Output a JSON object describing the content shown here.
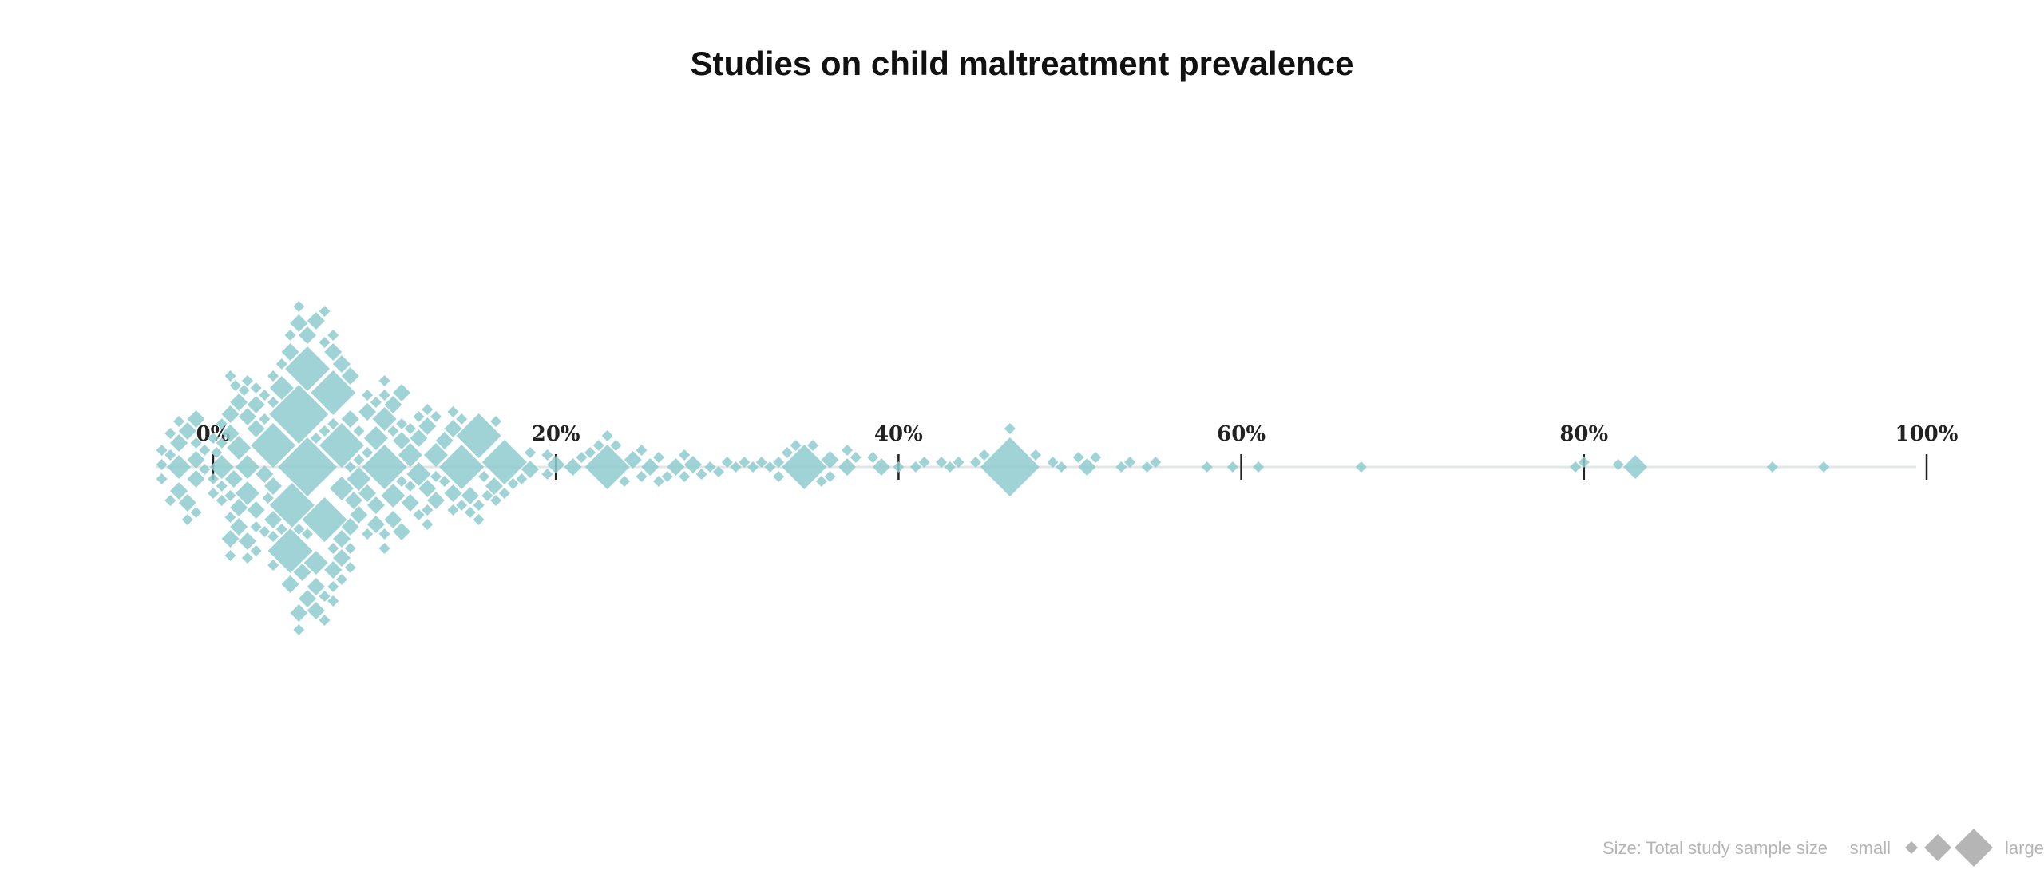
{
  "chart_data": {
    "type": "scatter",
    "subtype": "beeswarm",
    "title": "Studies on child maltreatment prevalence",
    "xlabel": "",
    "ylabel": "",
    "x_unit": "%",
    "xlim": [
      0,
      100
    ],
    "ticks": [
      "0%",
      "20%",
      "40%",
      "60%",
      "80%",
      "100%"
    ],
    "tick_values": [
      0,
      20,
      40,
      60,
      80,
      100
    ],
    "grid": false,
    "marker": "diamond",
    "colors": {
      "points": "#8ecbcf",
      "axis": "#e3e6e6",
      "tick": "#222222",
      "legend": "#b5b5b5"
    },
    "size_legend": {
      "label": "Size: Total study sample size",
      "small_label": "small",
      "large_label": "large",
      "placement": "bottom-right"
    },
    "points": [
      {
        "x": 3.2,
        "size": 1
      },
      {
        "x": 1.0,
        "size": 1
      },
      {
        "x": 1.0,
        "size": 1
      },
      {
        "x": 4.6,
        "size": 4
      },
      {
        "x": 6.5,
        "size": 4
      },
      {
        "x": 9.5,
        "size": 3
      },
      {
        "x": 1.5,
        "size": 2
      },
      {
        "x": 8.5,
        "size": 3
      },
      {
        "x": 3.0,
        "size": 2
      },
      {
        "x": 6.0,
        "size": 2
      },
      {
        "x": 0.5,
        "size": 1
      },
      {
        "x": 11.0,
        "size": 2
      },
      {
        "x": 2.0,
        "size": 3
      },
      {
        "x": 1.8,
        "size": 1
      },
      {
        "x": 0.2,
        "size": 1
      },
      {
        "x": 1.3,
        "size": 1
      },
      {
        "x": 5.5,
        "size": 2
      },
      {
        "x": 7.5,
        "size": 3
      },
      {
        "x": 8.2,
        "size": 2
      },
      {
        "x": 11.5,
        "size": 3
      },
      {
        "x": 13.0,
        "size": 1
      },
      {
        "x": 15.8,
        "size": 1
      },
      {
        "x": 16.4,
        "size": 2
      },
      {
        "x": 3.5,
        "size": 1
      },
      {
        "x": 14.5,
        "size": 1
      },
      {
        "x": 5.2,
        "size": 2
      },
      {
        "x": 1.2,
        "size": 2
      },
      {
        "x": 2.5,
        "size": 1
      },
      {
        "x": 10.5,
        "size": 3
      },
      {
        "x": -1.0,
        "size": 1
      },
      {
        "x": -2.0,
        "size": 2
      },
      {
        "x": 1.0,
        "size": 2
      },
      {
        "x": 2.0,
        "size": 1
      },
      {
        "x": 2.5,
        "size": 2
      },
      {
        "x": 4.0,
        "size": 3
      },
      {
        "x": 6.5,
        "size": 1
      },
      {
        "x": 8.0,
        "size": 2
      },
      {
        "x": 10.0,
        "size": 3
      },
      {
        "x": 12.0,
        "size": 2
      },
      {
        "x": 14.0,
        "size": 2
      },
      {
        "x": -2.5,
        "size": 1
      },
      {
        "x": -1.0,
        "size": 2
      },
      {
        "x": 1.0,
        "size": 1
      },
      {
        "x": 3.5,
        "size": 2
      },
      {
        "x": 7.0,
        "size": 1
      },
      {
        "x": 9.0,
        "size": 2
      },
      {
        "x": 11.5,
        "size": 1
      },
      {
        "x": 13.0,
        "size": 3
      },
      {
        "x": -2.0,
        "size": 2
      },
      {
        "x": 0.5,
        "size": 3
      },
      {
        "x": 2.0,
        "size": 2
      },
      {
        "x": 4.5,
        "size": 2
      },
      {
        "x": 6.0,
        "size": 3
      },
      {
        "x": 8.0,
        "size": 2
      },
      {
        "x": 9.5,
        "size": 1
      },
      {
        "x": 12.0,
        "size": 3
      },
      {
        "x": 14.5,
        "size": 4
      },
      {
        "x": -3.0,
        "size": 1
      },
      {
        "x": -1.5,
        "size": 1
      },
      {
        "x": 1.5,
        "size": 2
      },
      {
        "x": 3.0,
        "size": 1
      },
      {
        "x": 5.5,
        "size": 2
      },
      {
        "x": 7.5,
        "size": 2
      },
      {
        "x": 10.0,
        "size": 1
      },
      {
        "x": 12.5,
        "size": 2
      },
      {
        "x": 16.5,
        "size": 1
      },
      {
        "x": 18.0,
        "size": 1
      },
      {
        "x": 19.5,
        "size": 1
      },
      {
        "x": 21.0,
        "size": 2
      },
      {
        "x": 22.5,
        "size": 1
      },
      {
        "x": 24.0,
        "size": 1
      },
      {
        "x": 25.0,
        "size": 1
      },
      {
        "x": 26.0,
        "size": 1
      },
      {
        "x": 27.5,
        "size": 1
      },
      {
        "x": 28.5,
        "size": 1
      },
      {
        "x": 30.5,
        "size": 1
      },
      {
        "x": 31.5,
        "size": 1
      },
      {
        "x": 32.5,
        "size": 1
      },
      {
        "x": 34.0,
        "size": 1
      },
      {
        "x": 35.5,
        "size": 1
      },
      {
        "x": 37.0,
        "size": 1
      },
      {
        "x": 38.5,
        "size": 1
      },
      {
        "x": 41.0,
        "size": 1
      },
      {
        "x": 43.0,
        "size": 1
      },
      {
        "x": 44.5,
        "size": 1
      },
      {
        "x": 46.5,
        "size": 1
      },
      {
        "x": 48.0,
        "size": 1
      },
      {
        "x": 49.5,
        "size": 1
      },
      {
        "x": 51.5,
        "size": 1
      },
      {
        "x": 53.0,
        "size": 1
      },
      {
        "x": 54.5,
        "size": 1
      },
      {
        "x": -3.0,
        "size": 1
      },
      {
        "x": -1.5,
        "size": 2
      },
      {
        "x": 1.0,
        "size": 2
      },
      {
        "x": 2.5,
        "size": 1
      },
      {
        "x": 4.5,
        "size": 4
      },
      {
        "x": 6.0,
        "size": 1
      },
      {
        "x": 7.5,
        "size": 2
      },
      {
        "x": 9.0,
        "size": 1
      },
      {
        "x": 10.5,
        "size": 2
      },
      {
        "x": 12.5,
        "size": 1
      },
      {
        "x": 15.0,
        "size": 1
      },
      {
        "x": 17.5,
        "size": 1
      },
      {
        "x": 20.0,
        "size": 2
      },
      {
        "x": 23.0,
        "size": 4
      },
      {
        "x": 25.5,
        "size": 2
      },
      {
        "x": 27.0,
        "size": 2
      },
      {
        "x": 29.0,
        "size": 1
      },
      {
        "x": 31.0,
        "size": 1
      },
      {
        "x": 33.0,
        "size": 1
      },
      {
        "x": 35.0,
        "size": 1
      },
      {
        "x": 37.5,
        "size": 1
      },
      {
        "x": 40.0,
        "size": 1
      },
      {
        "x": 41.5,
        "size": 1
      },
      {
        "x": 43.5,
        "size": 1
      },
      {
        "x": 46.5,
        "size": 5
      },
      {
        "x": 49.0,
        "size": 1
      },
      {
        "x": 51.0,
        "size": 2
      },
      {
        "x": 53.5,
        "size": 1
      },
      {
        "x": 55.0,
        "size": 1
      },
      {
        "x": 58.0,
        "size": 1
      },
      {
        "x": 59.5,
        "size": 1
      },
      {
        "x": 61.0,
        "size": 1
      },
      {
        "x": 67.0,
        "size": 1
      },
      {
        "x": 79.5,
        "size": 1
      },
      {
        "x": 80.0,
        "size": 1
      },
      {
        "x": 82.0,
        "size": 1
      },
      {
        "x": 83.0,
        "size": 3
      },
      {
        "x": 91.0,
        "size": 1
      },
      {
        "x": 94.0,
        "size": 1
      },
      {
        "x": -2.5,
        "size": 1
      },
      {
        "x": -0.5,
        "size": 1
      },
      {
        "x": 2.0,
        "size": 3
      },
      {
        "x": 3.5,
        "size": 2
      },
      {
        "x": 5.0,
        "size": 2
      },
      {
        "x": 7.0,
        "size": 1
      },
      {
        "x": 8.5,
        "size": 2
      },
      {
        "x": 10.0,
        "size": 1
      },
      {
        "x": 11.5,
        "size": 2
      },
      {
        "x": 13.0,
        "size": 2
      },
      {
        "x": 15.5,
        "size": 1
      },
      {
        "x": 17.0,
        "size": 1
      },
      {
        "x": 18.5,
        "size": 1
      },
      {
        "x": 21.5,
        "size": 1
      },
      {
        "x": 24.5,
        "size": 2
      },
      {
        "x": 26.5,
        "size": 1
      },
      {
        "x": 28.0,
        "size": 2
      },
      {
        "x": 30.0,
        "size": 1
      },
      {
        "x": 32.0,
        "size": 1
      },
      {
        "x": 36.0,
        "size": 1
      },
      {
        "x": 39.0,
        "size": 2
      },
      {
        "x": 42.5,
        "size": 1
      },
      {
        "x": 45.0,
        "size": 1
      },
      {
        "x": 50.5,
        "size": 1
      },
      {
        "x": -2.0,
        "size": 1
      },
      {
        "x": 0.5,
        "size": 1
      },
      {
        "x": 2.5,
        "size": 2
      },
      {
        "x": 4.0,
        "size": 1
      },
      {
        "x": 6.0,
        "size": 2
      },
      {
        "x": 7.5,
        "size": 1
      },
      {
        "x": 9.5,
        "size": 2
      },
      {
        "x": 12.0,
        "size": 1
      },
      {
        "x": 14.0,
        "size": 1
      },
      {
        "x": 16.0,
        "size": 1
      },
      {
        "x": 23.5,
        "size": 1
      },
      {
        "x": 26.0,
        "size": 1
      },
      {
        "x": 29.5,
        "size": 1
      },
      {
        "x": 33.5,
        "size": 1
      },
      {
        "x": 34.5,
        "size": 4
      },
      {
        "x": 37.0,
        "size": 2
      },
      {
        "x": -3.0,
        "size": 1
      },
      {
        "x": -1.0,
        "size": 2
      },
      {
        "x": 1.5,
        "size": 2
      },
      {
        "x": 3.5,
        "size": 4
      },
      {
        "x": 5.5,
        "size": 1
      },
      {
        "x": 7.0,
        "size": 2
      },
      {
        "x": 9.0,
        "size": 2
      },
      {
        "x": 11.0,
        "size": 1
      },
      {
        "x": 12.5,
        "size": 2
      },
      {
        "x": 14.5,
        "size": 1
      },
      {
        "x": 17.0,
        "size": 4
      },
      {
        "x": 19.5,
        "size": 1
      },
      {
        "x": 22.0,
        "size": 1
      },
      {
        "x": 25.0,
        "size": 1
      },
      {
        "x": 27.5,
        "size": 1
      },
      {
        "x": -2.5,
        "size": 1
      },
      {
        "x": 0.0,
        "size": 1
      },
      {
        "x": 2.0,
        "size": 1
      },
      {
        "x": 4.5,
        "size": 2
      },
      {
        "x": 6.5,
        "size": 1
      },
      {
        "x": 8.0,
        "size": 2
      },
      {
        "x": 10.0,
        "size": 1
      },
      {
        "x": 11.5,
        "size": 1
      },
      {
        "x": 13.5,
        "size": 2
      },
      {
        "x": 15.5,
        "size": 1
      },
      {
        "x": 23.0,
        "size": 1
      },
      {
        "x": 33.0,
        "size": 1
      },
      {
        "x": 36.0,
        "size": 2
      },
      {
        "x": -2.0,
        "size": 3
      },
      {
        "x": 0.0,
        "size": 1
      },
      {
        "x": 2.5,
        "size": 1
      },
      {
        "x": 5.0,
        "size": 2
      },
      {
        "x": 7.5,
        "size": 2
      },
      {
        "x": 9.0,
        "size": 1
      },
      {
        "x": 10.5,
        "size": 2
      },
      {
        "x": 12.5,
        "size": 1
      },
      {
        "x": 14.0,
        "size": 2
      },
      {
        "x": 16.5,
        "size": 1
      },
      {
        "x": 18.5,
        "size": 2
      },
      {
        "x": -1.0,
        "size": 1
      },
      {
        "x": 1.0,
        "size": 2
      },
      {
        "x": 3.0,
        "size": 1
      },
      {
        "x": 6.0,
        "size": 2
      },
      {
        "x": 8.5,
        "size": 1
      },
      {
        "x": 11.0,
        "size": 2
      },
      {
        "x": 13.5,
        "size": 1
      },
      {
        "x": 15.0,
        "size": 2
      },
      {
        "x": -1.5,
        "size": 2
      },
      {
        "x": 0.5,
        "size": 1
      },
      {
        "x": 3.5,
        "size": 1
      },
      {
        "x": 5.0,
        "size": 1
      },
      {
        "x": 7.0,
        "size": 1
      },
      {
        "x": 10.0,
        "size": 1
      },
      {
        "x": 12.0,
        "size": 1
      },
      {
        "x": 15.5,
        "size": 4
      },
      {
        "x": 2.0,
        "size": 2
      },
      {
        "x": 4.0,
        "size": 1
      },
      {
        "x": 5.5,
        "size": 4
      },
      {
        "x": 8.0,
        "size": 1
      },
      {
        "x": 9.5,
        "size": 2
      },
      {
        "x": 11.0,
        "size": 1
      },
      {
        "x": 13.0,
        "size": 1
      },
      {
        "x": 7.0,
        "size": 1
      },
      {
        "x": 10.0,
        "size": 4
      },
      {
        "x": 12.5,
        "size": 1
      },
      {
        "x": 14.0,
        "size": 1
      },
      {
        "x": -1.0,
        "size": 2
      },
      {
        "x": 0.5,
        "size": 1
      },
      {
        "x": 6.5,
        "size": 1
      },
      {
        "x": 10.5,
        "size": 1
      },
      {
        "x": 1.0,
        "size": 1
      },
      {
        "x": 3.0,
        "size": 1
      },
      {
        "x": 8.0,
        "size": 1
      },
      {
        "x": 9.0,
        "size": 1
      },
      {
        "x": -0.5,
        "size": 1
      },
      {
        "x": 1.5,
        "size": 3
      },
      {
        "x": 3.5,
        "size": 1
      },
      {
        "x": 5.0,
        "size": 1
      },
      {
        "x": 6.5,
        "size": 1
      },
      {
        "x": 11.0,
        "size": 2
      },
      {
        "x": 0.0,
        "size": 1
      },
      {
        "x": 2.5,
        "size": 2
      },
      {
        "x": 4.5,
        "size": 1
      },
      {
        "x": 5.5,
        "size": 5
      },
      {
        "x": 7.0,
        "size": 2
      },
      {
        "x": 7.5,
        "size": 4
      },
      {
        "x": 3.5,
        "size": 1
      },
      {
        "x": 5.0,
        "size": 1
      },
      {
        "x": 6.5,
        "size": 1
      },
      {
        "x": 8.0,
        "size": 1
      },
      {
        "x": 5.0,
        "size": 5
      },
      {
        "x": 7.0,
        "size": 1
      },
      {
        "x": 8.5,
        "size": 1
      },
      {
        "x": 7.0,
        "size": 4
      }
    ]
  }
}
